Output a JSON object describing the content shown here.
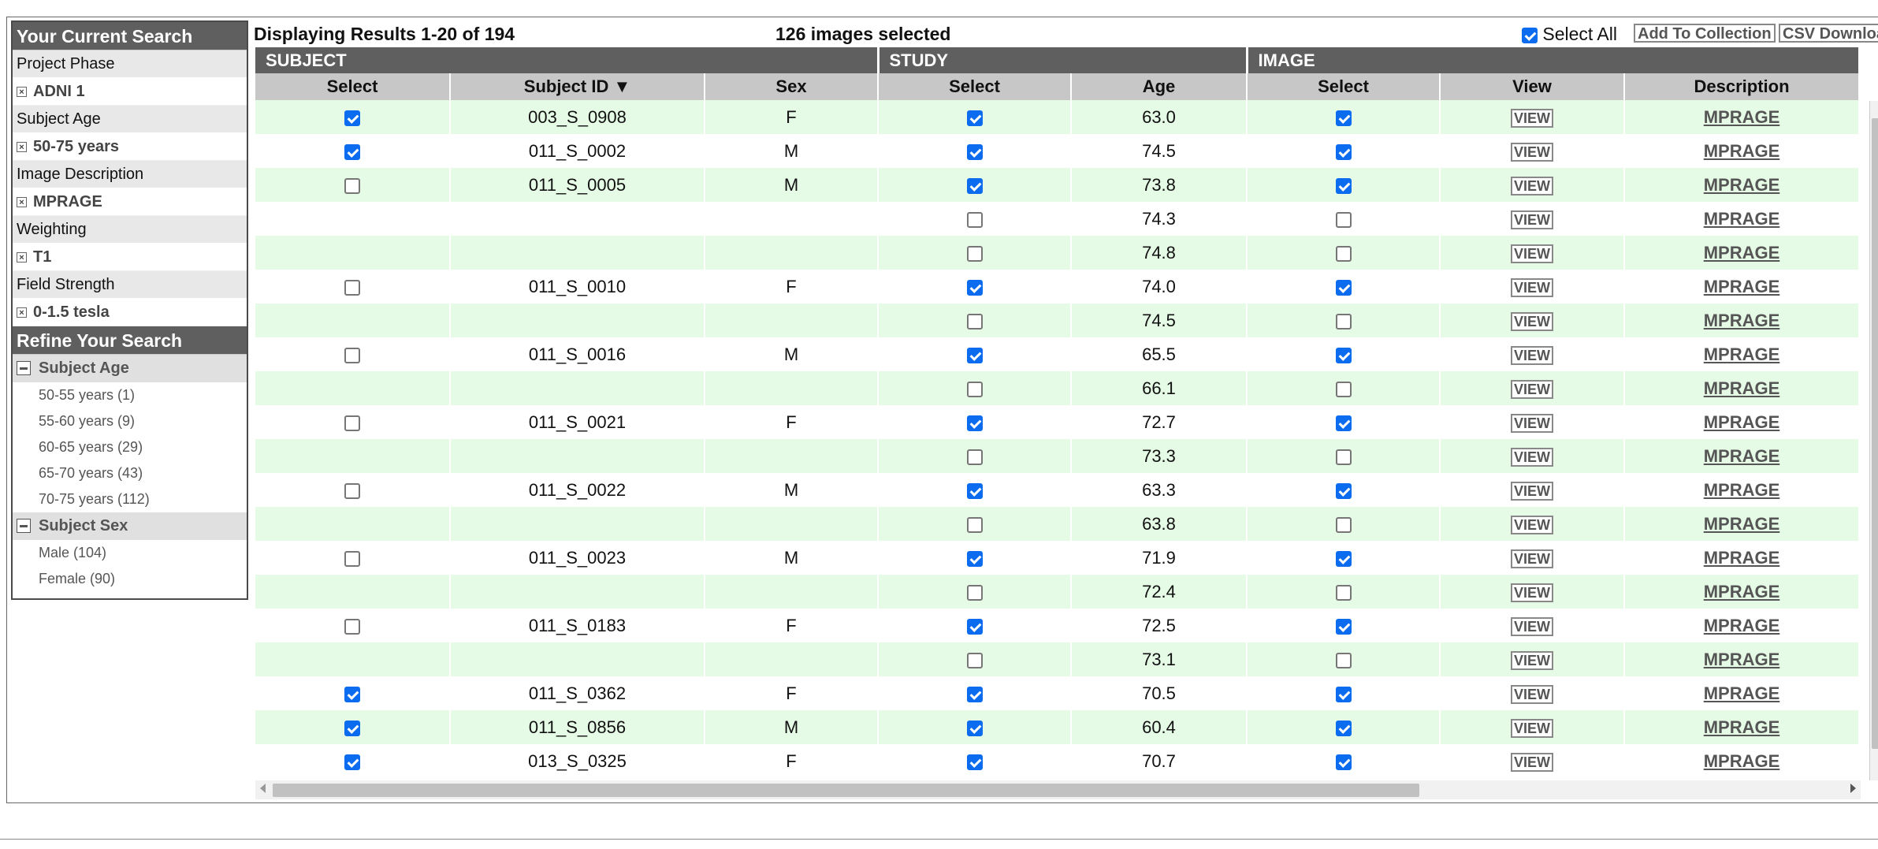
{
  "sidebar": {
    "current_search_title": "Your Current Search",
    "criteria": [
      {
        "label": "Project Phase",
        "value": "ADNI 1"
      },
      {
        "label": "Subject Age",
        "value": "50-75 years"
      },
      {
        "label": "Image Description",
        "value": "MPRAGE"
      },
      {
        "label": "Weighting",
        "value": "T1"
      },
      {
        "label": "Field Strength",
        "value": "0-1.5 tesla"
      }
    ],
    "refine_title": "Refine Your Search",
    "groups": [
      {
        "title": "Subject Age",
        "items": [
          "50-55 years (1)",
          "55-60 years (9)",
          "60-65 years (29)",
          "65-70 years (43)",
          "70-75 years (112)"
        ]
      },
      {
        "title": "Subject Sex",
        "items": [
          "Male (104)",
          "Female (90)"
        ]
      }
    ]
  },
  "results": {
    "count_text": "Displaying Results 1-20 of 194",
    "selected_text": "126 images selected",
    "select_all_label": "Select All",
    "select_all_checked": true,
    "add_to_collection": "Add To Collection",
    "csv_download": "CSV Download"
  },
  "table": {
    "groups": [
      "SUBJECT",
      "STUDY",
      "IMAGE"
    ],
    "columns": [
      "Select",
      "Subject ID ▼",
      "Sex",
      "Select",
      "Age",
      "Select",
      "View",
      "Description"
    ],
    "view_label": "VIEW",
    "rows": [
      {
        "subj_sel": true,
        "subject_id": "003_S_0908",
        "sex": "F",
        "study_sel": true,
        "age": "63.0",
        "img_sel": true,
        "desc": "MPRAGE"
      },
      {
        "subj_sel": true,
        "subject_id": "011_S_0002",
        "sex": "M",
        "study_sel": true,
        "age": "74.5",
        "img_sel": true,
        "desc": "MPRAGE"
      },
      {
        "subj_sel": false,
        "subject_id": "011_S_0005",
        "sex": "M",
        "study_sel": true,
        "age": "73.8",
        "img_sel": true,
        "desc": "MPRAGE"
      },
      {
        "subj_sel": null,
        "subject_id": "",
        "sex": "",
        "study_sel": false,
        "age": "74.3",
        "img_sel": false,
        "desc": "MPRAGE"
      },
      {
        "subj_sel": null,
        "subject_id": "",
        "sex": "",
        "study_sel": false,
        "age": "74.8",
        "img_sel": false,
        "desc": "MPRAGE"
      },
      {
        "subj_sel": false,
        "subject_id": "011_S_0010",
        "sex": "F",
        "study_sel": true,
        "age": "74.0",
        "img_sel": true,
        "desc": "MPRAGE"
      },
      {
        "subj_sel": null,
        "subject_id": "",
        "sex": "",
        "study_sel": false,
        "age": "74.5",
        "img_sel": false,
        "desc": "MPRAGE"
      },
      {
        "subj_sel": false,
        "subject_id": "011_S_0016",
        "sex": "M",
        "study_sel": true,
        "age": "65.5",
        "img_sel": true,
        "desc": "MPRAGE"
      },
      {
        "subj_sel": null,
        "subject_id": "",
        "sex": "",
        "study_sel": false,
        "age": "66.1",
        "img_sel": false,
        "desc": "MPRAGE"
      },
      {
        "subj_sel": false,
        "subject_id": "011_S_0021",
        "sex": "F",
        "study_sel": true,
        "age": "72.7",
        "img_sel": true,
        "desc": "MPRAGE"
      },
      {
        "subj_sel": null,
        "subject_id": "",
        "sex": "",
        "study_sel": false,
        "age": "73.3",
        "img_sel": false,
        "desc": "MPRAGE"
      },
      {
        "subj_sel": false,
        "subject_id": "011_S_0022",
        "sex": "M",
        "study_sel": true,
        "age": "63.3",
        "img_sel": true,
        "desc": "MPRAGE"
      },
      {
        "subj_sel": null,
        "subject_id": "",
        "sex": "",
        "study_sel": false,
        "age": "63.8",
        "img_sel": false,
        "desc": "MPRAGE"
      },
      {
        "subj_sel": false,
        "subject_id": "011_S_0023",
        "sex": "M",
        "study_sel": true,
        "age": "71.9",
        "img_sel": true,
        "desc": "MPRAGE"
      },
      {
        "subj_sel": null,
        "subject_id": "",
        "sex": "",
        "study_sel": false,
        "age": "72.4",
        "img_sel": false,
        "desc": "MPRAGE"
      },
      {
        "subj_sel": false,
        "subject_id": "011_S_0183",
        "sex": "F",
        "study_sel": true,
        "age": "72.5",
        "img_sel": true,
        "desc": "MPRAGE"
      },
      {
        "subj_sel": null,
        "subject_id": "",
        "sex": "",
        "study_sel": false,
        "age": "73.1",
        "img_sel": false,
        "desc": "MPRAGE"
      },
      {
        "subj_sel": true,
        "subject_id": "011_S_0362",
        "sex": "F",
        "study_sel": true,
        "age": "70.5",
        "img_sel": true,
        "desc": "MPRAGE"
      },
      {
        "subj_sel": true,
        "subject_id": "011_S_0856",
        "sex": "M",
        "study_sel": true,
        "age": "60.4",
        "img_sel": true,
        "desc": "MPRAGE"
      },
      {
        "subj_sel": true,
        "subject_id": "013_S_0325",
        "sex": "F",
        "study_sel": true,
        "age": "70.7",
        "img_sel": true,
        "desc": "MPRAGE"
      }
    ]
  }
}
